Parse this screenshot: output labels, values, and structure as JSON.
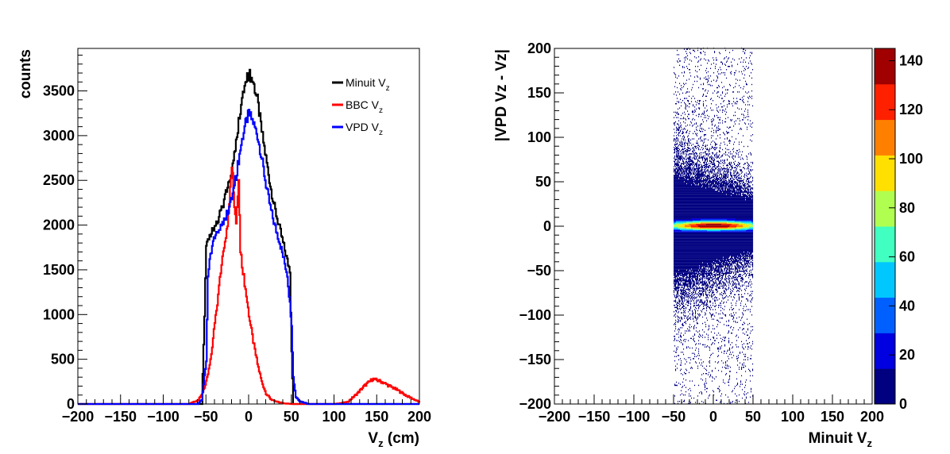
{
  "chart_data": [
    {
      "type": "line",
      "title": "",
      "xlabel": "V",
      "xlabel_sub": "z",
      "xlabel_unit": " (cm)",
      "ylabel": "counts",
      "xlim": [
        -200,
        200
      ],
      "ylim": [
        0,
        4000
      ],
      "xticks": [
        -200,
        -150,
        -100,
        -50,
        0,
        50,
        100,
        150,
        200
      ],
      "yticks": [
        0,
        500,
        1000,
        1500,
        2000,
        2500,
        3000,
        3500
      ],
      "legend": "top-right",
      "grid": false,
      "series": [
        {
          "name": "Minuit V",
          "name_sub": "z",
          "color": "#000000",
          "x": [
            -200,
            -60,
            -55,
            -52,
            -50,
            -45,
            -40,
            -35,
            -30,
            -25,
            -20,
            -15,
            -10,
            -5,
            0,
            5,
            10,
            15,
            20,
            25,
            30,
            35,
            40,
            45,
            48,
            50,
            52,
            60,
            200
          ],
          "y": [
            0,
            0,
            0,
            1000,
            1750,
            1900,
            2000,
            2100,
            2250,
            2400,
            2600,
            2950,
            3300,
            3550,
            3700,
            3600,
            3400,
            3050,
            2750,
            2450,
            2200,
            2000,
            1800,
            1600,
            1500,
            600,
            0,
            0,
            0
          ]
        },
        {
          "name": "BBC V",
          "name_sub": "z",
          "color": "#ff0000",
          "x": [
            -200,
            -70,
            -60,
            -55,
            -50,
            -45,
            -40,
            -35,
            -30,
            -25,
            -20,
            -17,
            -15,
            -12,
            -10,
            -5,
            0,
            5,
            10,
            15,
            20,
            25,
            30,
            40,
            50,
            100,
            115,
            125,
            135,
            145,
            155,
            165,
            175,
            185,
            200
          ],
          "y": [
            0,
            0,
            40,
            100,
            250,
            500,
            900,
            1300,
            1700,
            2000,
            2700,
            2250,
            2000,
            2500,
            1700,
            1350,
            1000,
            700,
            450,
            250,
            120,
            60,
            30,
            10,
            0,
            0,
            20,
            100,
            200,
            280,
            250,
            200,
            150,
            90,
            20
          ]
        },
        {
          "name": "VPD V",
          "name_sub": "z",
          "color": "#0000ff",
          "x": [
            -200,
            -60,
            -55,
            -50,
            -48,
            -45,
            -40,
            -35,
            -30,
            -25,
            -20,
            -15,
            -10,
            -5,
            0,
            5,
            10,
            15,
            20,
            25,
            30,
            35,
            40,
            45,
            50,
            52,
            55,
            60,
            70,
            200
          ],
          "y": [
            0,
            0,
            50,
            500,
            1400,
            1700,
            1850,
            1950,
            2050,
            2150,
            2300,
            2550,
            2850,
            3100,
            3250,
            3150,
            3000,
            2750,
            2450,
            2200,
            2000,
            1850,
            1650,
            1450,
            900,
            300,
            80,
            30,
            0,
            0
          ]
        }
      ]
    },
    {
      "type": "heatmap",
      "title": "",
      "xlabel": "Minuit V",
      "xlabel_sub": "z",
      "ylabel": "|VPD Vz - Vz|",
      "xlim": [
        -200,
        200
      ],
      "ylim": [
        -200,
        200
      ],
      "xticks": [
        -200,
        -150,
        -100,
        -50,
        0,
        50,
        100,
        150,
        200
      ],
      "yticks": [
        -200,
        -150,
        -100,
        -50,
        0,
        50,
        100,
        150,
        200
      ],
      "x_extent": [
        -50,
        50
      ],
      "peak_y": 0,
      "core_halfwidth": 5,
      "colorbar": {
        "range": [
          0,
          145
        ],
        "ticks": [
          0,
          20,
          40,
          60,
          80,
          100,
          120,
          140
        ],
        "colors": [
          "#000080",
          "#0000e0",
          "#0060ff",
          "#00c8ff",
          "#40ffc0",
          "#b0ff50",
          "#ffe000",
          "#ff8000",
          "#ff2000",
          "#a00000"
        ]
      }
    }
  ]
}
